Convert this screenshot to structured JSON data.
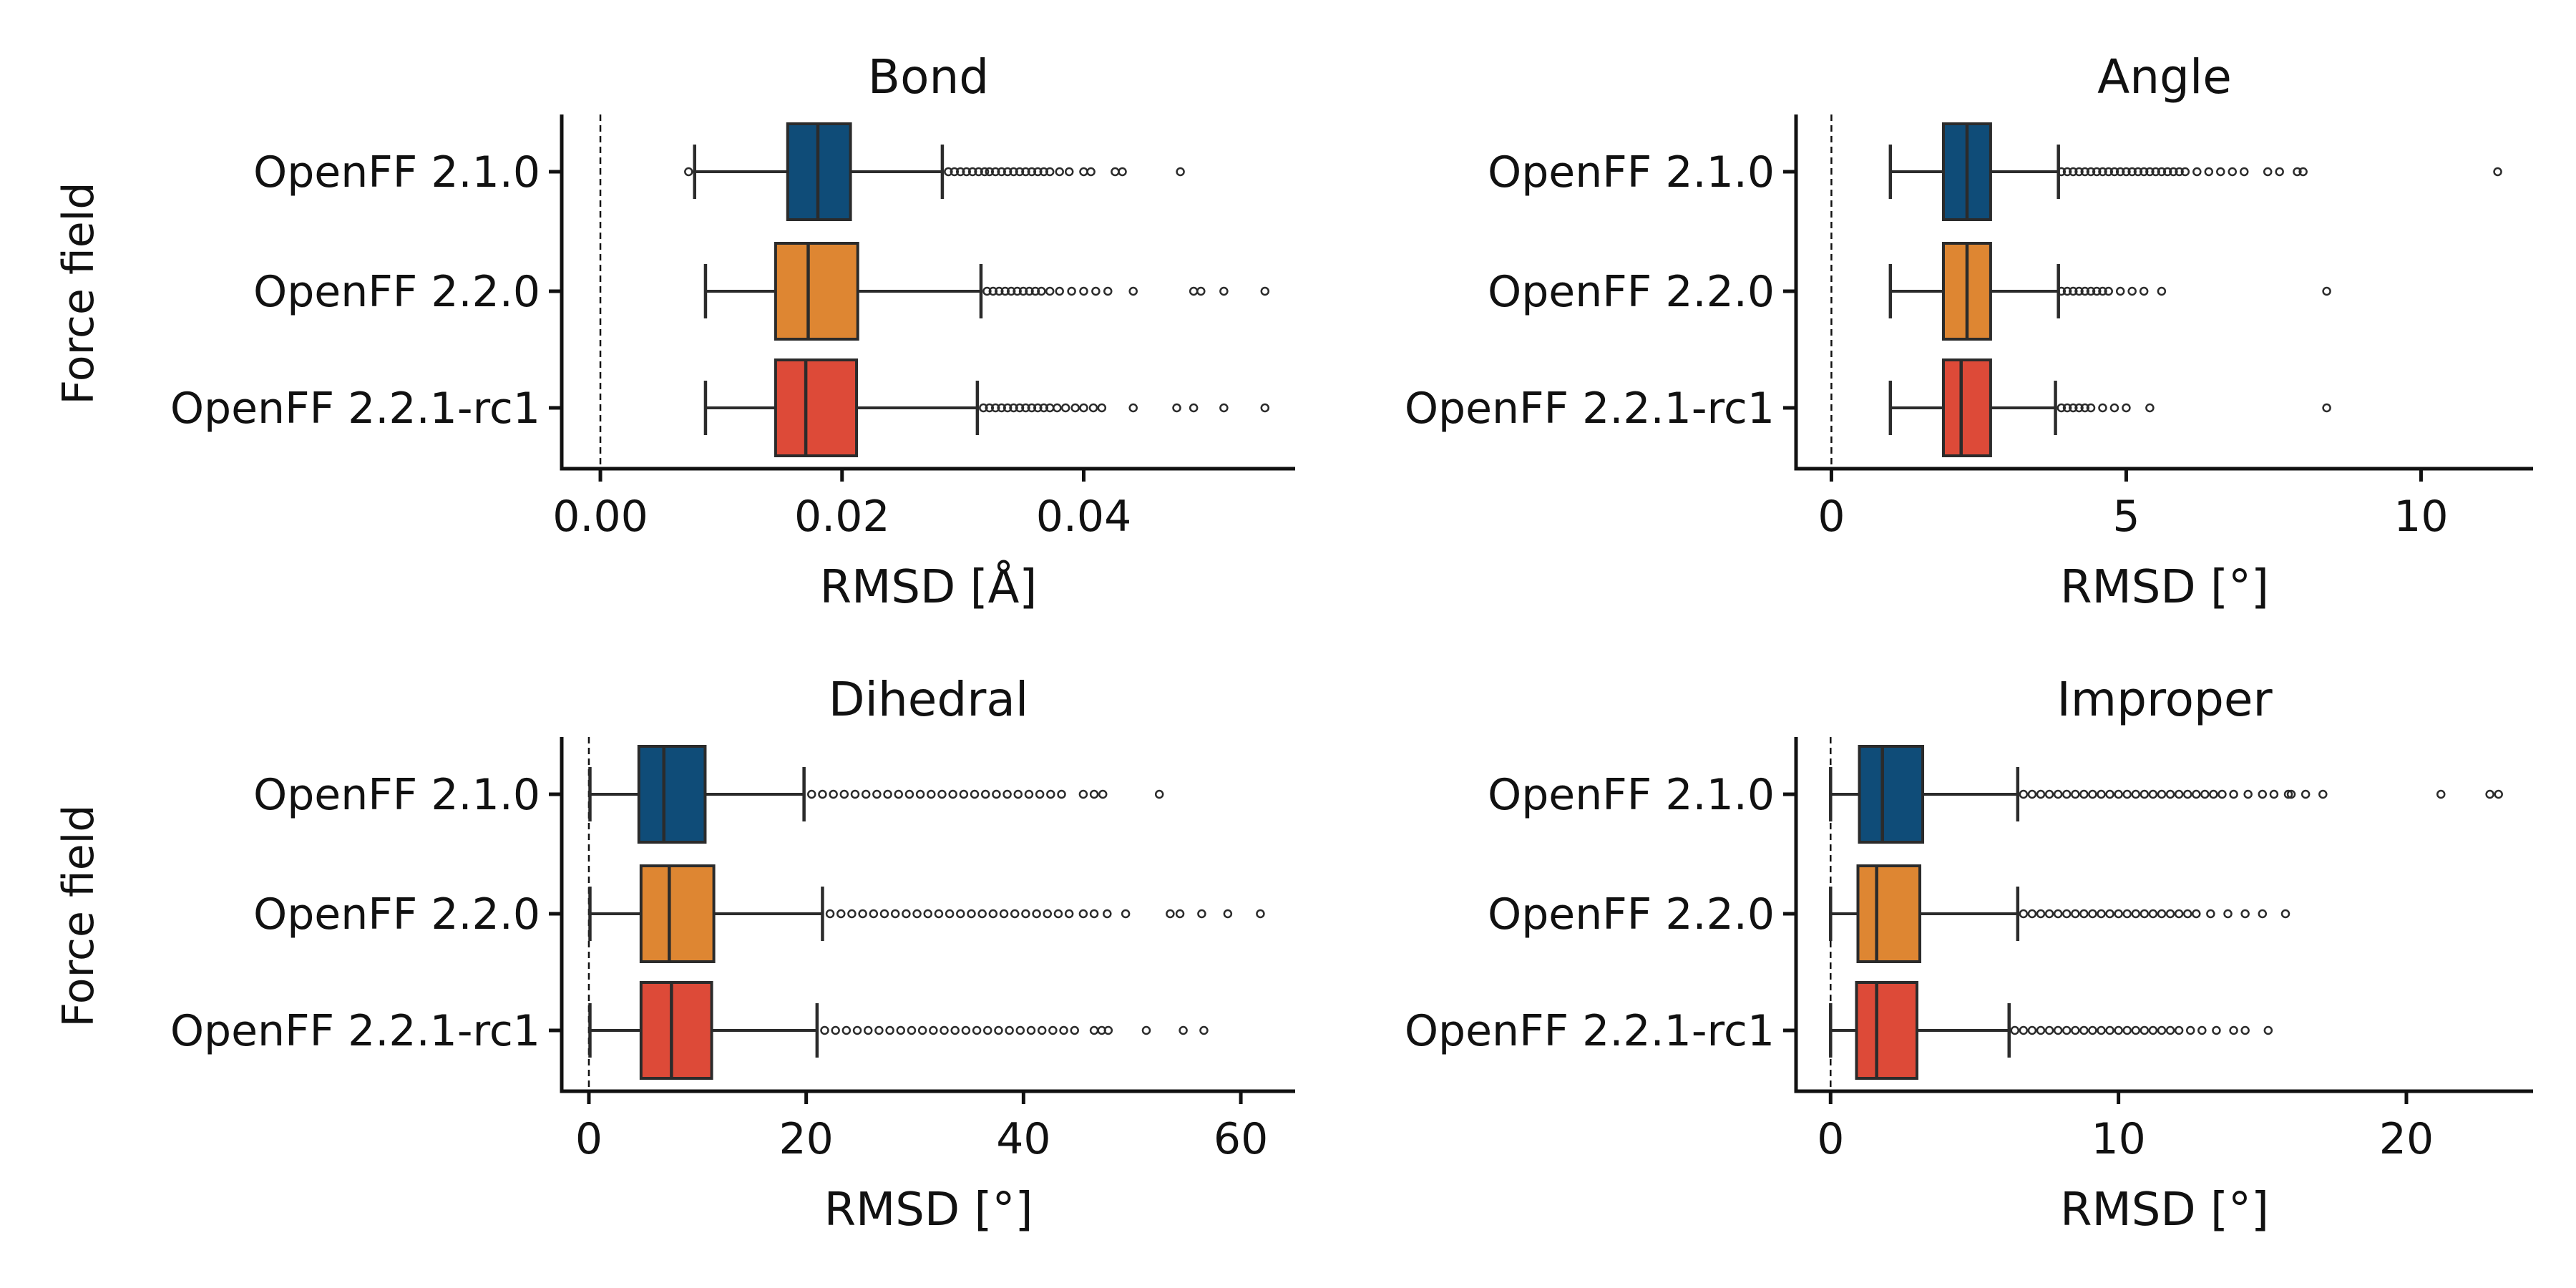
{
  "figure": {
    "y_axis_label": "Force field",
    "categories": [
      "OpenFF 2.1.0",
      "OpenFF 2.2.0",
      "OpenFF 2.2.1-rc1"
    ],
    "colors": [
      "#0f4c78",
      "#de8632",
      "#dd4a38"
    ],
    "reference_line_x": 0
  },
  "chart_data": [
    {
      "type": "box",
      "title": "Bond",
      "xlabel": "RMSD [Å]",
      "xlim": [
        -0.0032,
        0.0575
      ],
      "xticks": [
        0.0,
        0.02,
        0.04
      ],
      "xtick_labels": [
        "0.00",
        "0.02",
        "0.04"
      ],
      "categories": [
        "OpenFF 2.1.0",
        "OpenFF 2.2.0",
        "OpenFF 2.2.1-rc1"
      ],
      "boxes": [
        {
          "whisker_low": 0.0078,
          "q1": 0.0155,
          "median": 0.018,
          "q3": 0.0207,
          "whisker_high": 0.0283,
          "fliers": [
            0.0073,
            0.0288,
            0.0293,
            0.0298,
            0.0303,
            0.0308,
            0.0313,
            0.0318,
            0.0322,
            0.0327,
            0.0332,
            0.0337,
            0.0342,
            0.0347,
            0.0352,
            0.0357,
            0.0362,
            0.0367,
            0.0372,
            0.038,
            0.0388,
            0.04,
            0.0406,
            0.0426,
            0.0432,
            0.048
          ]
        },
        {
          "whisker_low": 0.0087,
          "q1": 0.0145,
          "median": 0.0172,
          "q3": 0.0213,
          "whisker_high": 0.0315,
          "fliers": [
            0.032,
            0.0325,
            0.033,
            0.0335,
            0.034,
            0.0345,
            0.035,
            0.0355,
            0.036,
            0.0365,
            0.0372,
            0.038,
            0.039,
            0.04,
            0.041,
            0.042,
            0.0441,
            0.0491,
            0.0497,
            0.0516,
            0.055
          ]
        },
        {
          "whisker_low": 0.0087,
          "q1": 0.0145,
          "median": 0.017,
          "q3": 0.0212,
          "whisker_high": 0.0312,
          "fliers": [
            0.0317,
            0.0322,
            0.0327,
            0.0332,
            0.0337,
            0.0342,
            0.0347,
            0.0352,
            0.0357,
            0.0362,
            0.0367,
            0.0372,
            0.0378,
            0.0385,
            0.0393,
            0.04,
            0.0408,
            0.0415,
            0.0441,
            0.0477,
            0.0491,
            0.0516,
            0.055
          ]
        }
      ]
    },
    {
      "type": "box",
      "title": "Angle",
      "xlabel": "RMSD [°]",
      "xlim": [
        -0.6,
        11.9
      ],
      "xticks": [
        0,
        5,
        10
      ],
      "xtick_labels": [
        "0",
        "5",
        "10"
      ],
      "categories": [
        "OpenFF 2.1.0",
        "OpenFF 2.2.0",
        "OpenFF 2.2.1-rc1"
      ],
      "boxes": [
        {
          "whisker_low": 1.0,
          "q1": 1.9,
          "median": 2.3,
          "q3": 2.7,
          "whisker_high": 3.85,
          "fliers": [
            3.9,
            4.0,
            4.1,
            4.2,
            4.3,
            4.4,
            4.5,
            4.6,
            4.7,
            4.8,
            4.9,
            5.0,
            5.1,
            5.2,
            5.3,
            5.4,
            5.5,
            5.6,
            5.7,
            5.8,
            5.9,
            6.0,
            6.2,
            6.4,
            6.6,
            6.8,
            7.0,
            7.4,
            7.6,
            7.9,
            8.0,
            11.3
          ]
        },
        {
          "whisker_low": 1.0,
          "q1": 1.9,
          "median": 2.3,
          "q3": 2.7,
          "whisker_high": 3.85,
          "fliers": [
            3.9,
            4.0,
            4.1,
            4.2,
            4.3,
            4.4,
            4.5,
            4.6,
            4.7,
            4.9,
            5.1,
            5.3,
            5.6,
            8.4
          ]
        },
        {
          "whisker_low": 1.0,
          "q1": 1.9,
          "median": 2.2,
          "q3": 2.7,
          "whisker_high": 3.8,
          "fliers": [
            3.9,
            4.0,
            4.1,
            4.2,
            4.3,
            4.4,
            4.6,
            4.8,
            5.0,
            5.4,
            8.4
          ]
        }
      ]
    },
    {
      "type": "box",
      "title": "Dihedral",
      "xlabel": "RMSD [°]",
      "xlim": [
        -2.5,
        65
      ],
      "xticks": [
        0,
        20,
        40,
        60
      ],
      "xtick_labels": [
        "0",
        "20",
        "40",
        "60"
      ],
      "categories": [
        "OpenFF 2.1.0",
        "OpenFF 2.2.0",
        "OpenFF 2.2.1-rc1"
      ],
      "boxes": [
        {
          "whisker_low": 0.1,
          "q1": 4.6,
          "median": 6.9,
          "q3": 10.7,
          "whisker_high": 19.8,
          "fliers": [
            20.5,
            21.5,
            22.5,
            23.5,
            24.5,
            25.5,
            26.5,
            27.5,
            28.5,
            29.5,
            30.5,
            31.5,
            32.5,
            33.5,
            34.5,
            35.5,
            36.5,
            37.5,
            38.5,
            39.5,
            40.5,
            41.5,
            42.5,
            43.5,
            45.5,
            46.5,
            47.3,
            52.5
          ]
        },
        {
          "whisker_low": 0.1,
          "q1": 4.8,
          "median": 7.4,
          "q3": 11.5,
          "whisker_high": 21.5,
          "fliers": [
            22.2,
            23.2,
            24.2,
            25.2,
            26.2,
            27.2,
            28.2,
            29.2,
            30.2,
            31.2,
            32.2,
            33.2,
            34.2,
            35.2,
            36.2,
            37.2,
            38.2,
            39.2,
            40.2,
            41.2,
            42.2,
            43.2,
            44.2,
            45.5,
            46.5,
            47.7,
            49.4,
            53.5,
            54.4,
            56.4,
            58.8,
            61.8
          ]
        },
        {
          "whisker_low": 0.1,
          "q1": 4.8,
          "median": 7.6,
          "q3": 11.3,
          "whisker_high": 21.0,
          "fliers": [
            21.7,
            22.7,
            23.7,
            24.7,
            25.7,
            26.7,
            27.7,
            28.7,
            29.7,
            30.7,
            31.7,
            32.7,
            33.7,
            34.7,
            35.7,
            36.7,
            37.7,
            38.7,
            39.7,
            40.7,
            41.7,
            42.7,
            43.7,
            44.7,
            46.5,
            47.2,
            47.8,
            51.3,
            54.7,
            56.6
          ]
        }
      ]
    },
    {
      "type": "box",
      "title": "Improper",
      "xlabel": "RMSD [°]",
      "xlim": [
        -1.2,
        24.4
      ],
      "xticks": [
        0,
        10,
        20
      ],
      "xtick_labels": [
        "0",
        "10",
        "20"
      ],
      "categories": [
        "OpenFF 2.1.0",
        "OpenFF 2.2.0",
        "OpenFF 2.2.1-rc1"
      ],
      "boxes": [
        {
          "whisker_low": 0.0,
          "q1": 1.0,
          "median": 1.8,
          "q3": 3.2,
          "whisker_high": 6.5,
          "fliers": [
            6.7,
            7.0,
            7.3,
            7.6,
            7.9,
            8.2,
            8.5,
            8.8,
            9.1,
            9.4,
            9.7,
            10.0,
            10.3,
            10.6,
            10.9,
            11.2,
            11.5,
            11.8,
            12.1,
            12.4,
            12.7,
            13.0,
            13.3,
            13.6,
            14.0,
            14.5,
            15.0,
            15.4,
            15.9,
            16.0,
            16.5,
            17.1,
            21.2,
            22.9,
            23.2
          ]
        },
        {
          "whisker_low": 0.0,
          "q1": 0.95,
          "median": 1.6,
          "q3": 3.1,
          "whisker_high": 6.5,
          "fliers": [
            6.7,
            7.0,
            7.3,
            7.6,
            7.9,
            8.2,
            8.5,
            8.8,
            9.1,
            9.4,
            9.7,
            10.0,
            10.3,
            10.6,
            10.9,
            11.2,
            11.5,
            11.8,
            12.1,
            12.4,
            12.7,
            13.2,
            13.8,
            14.4,
            15.0,
            15.8
          ]
        },
        {
          "whisker_low": 0.0,
          "q1": 0.9,
          "median": 1.6,
          "q3": 3.0,
          "whisker_high": 6.2,
          "fliers": [
            6.4,
            6.7,
            7.0,
            7.3,
            7.6,
            7.9,
            8.2,
            8.5,
            8.8,
            9.1,
            9.4,
            9.7,
            10.0,
            10.3,
            10.6,
            10.9,
            11.2,
            11.5,
            11.8,
            12.1,
            12.5,
            12.9,
            13.4,
            14.0,
            14.4,
            15.2
          ]
        }
      ]
    }
  ]
}
